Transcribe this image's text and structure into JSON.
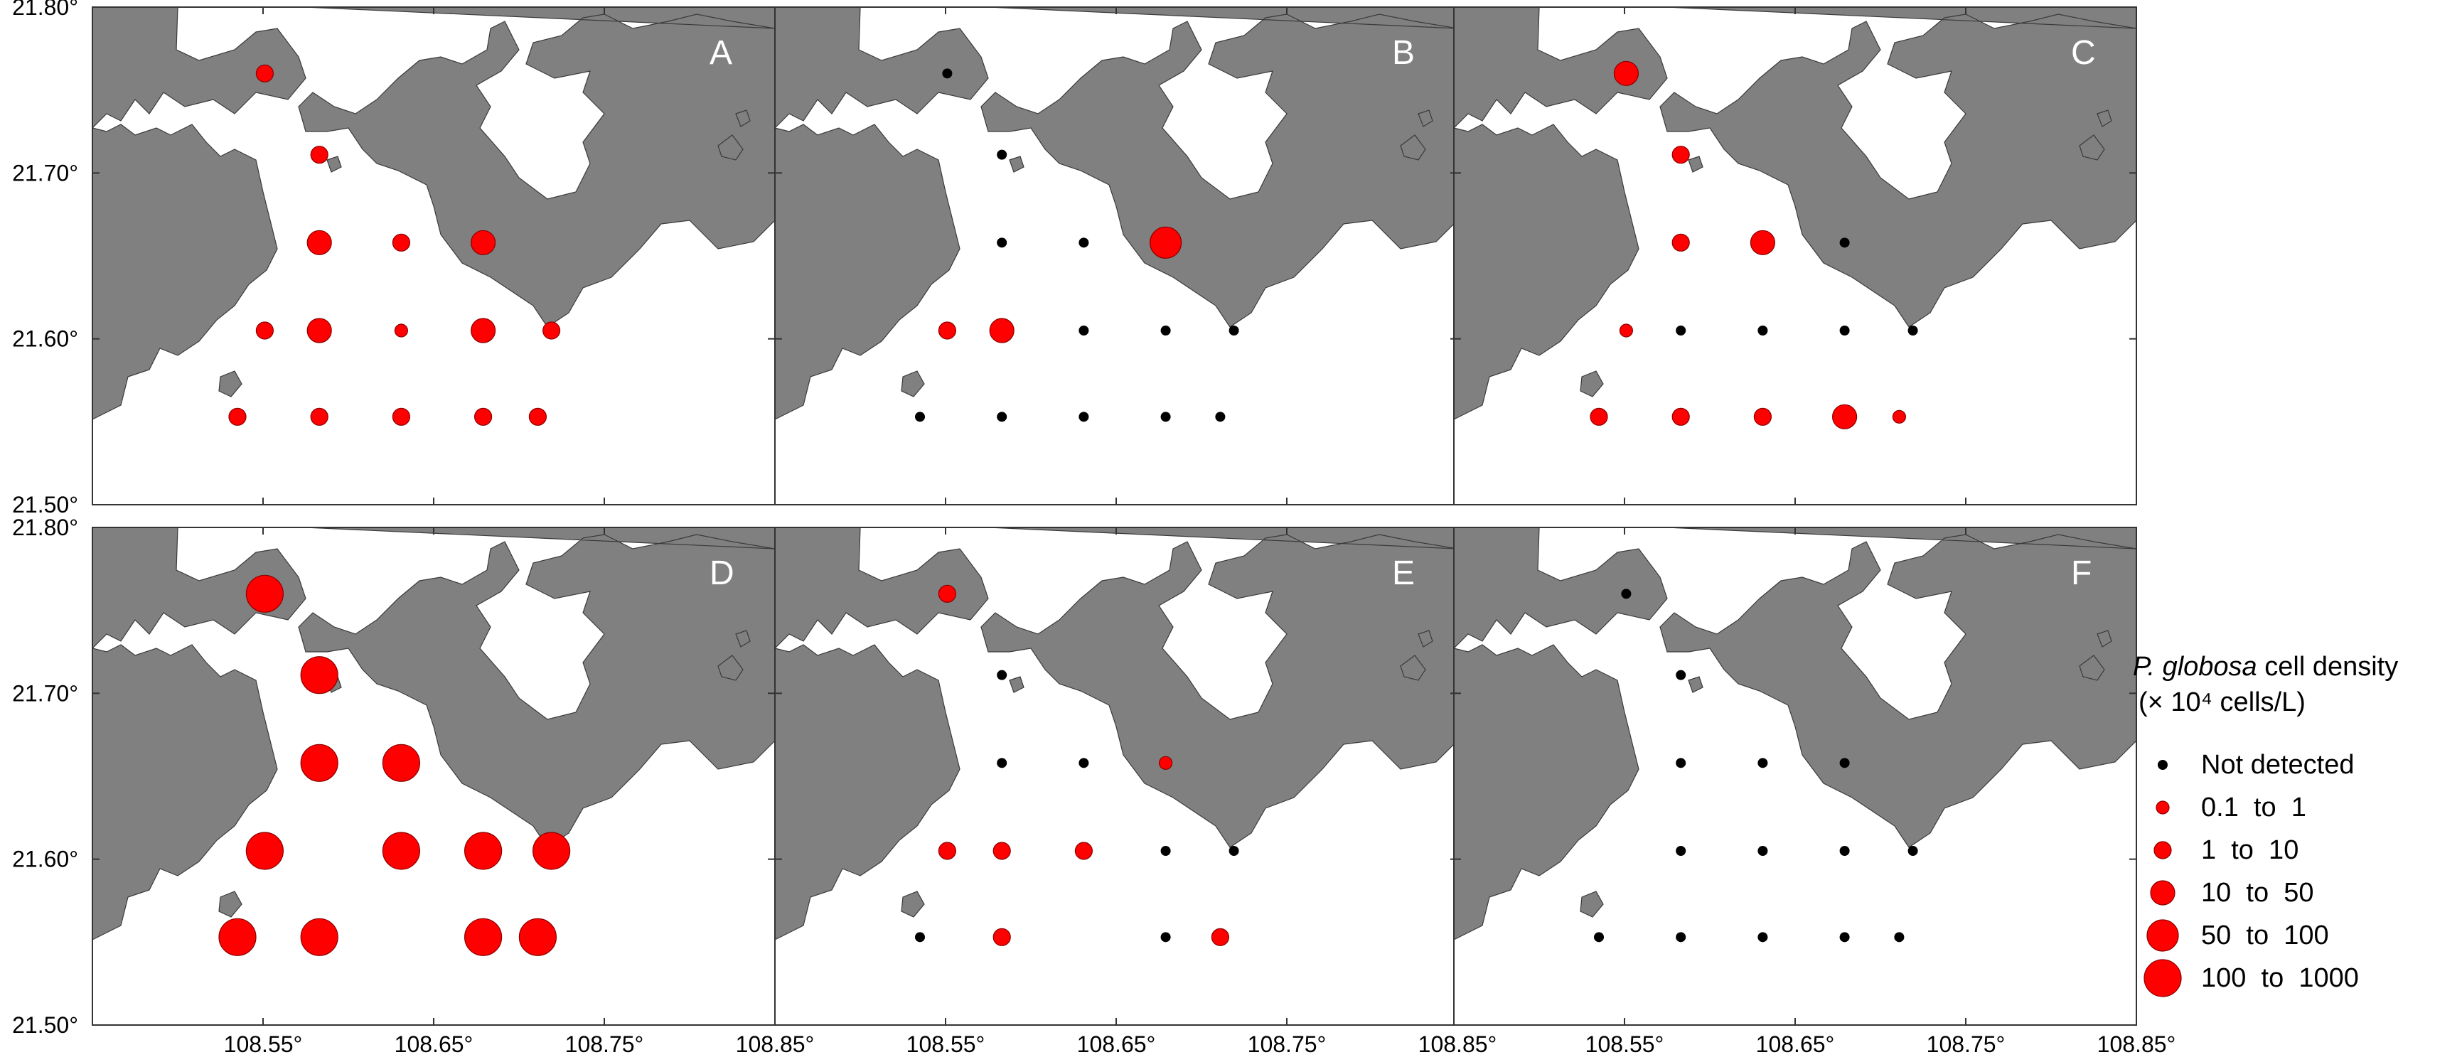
{
  "legend": {
    "title_italic": "P. globosa",
    "title_rest": " cell density",
    "unit": "(× 10⁴ cells/L)",
    "items": [
      {
        "label": "Not detected",
        "class": 0
      },
      {
        "label": "0.1  to  1",
        "class": 1
      },
      {
        "label": "1  to  10",
        "class": 2
      },
      {
        "label": "10  to  50",
        "class": 3
      },
      {
        "label": "50  to  100",
        "class": 4
      },
      {
        "label": "100  to  1000",
        "class": 5
      }
    ]
  },
  "axes": {
    "lat_ticks": [
      "21.80°",
      "21.70°",
      "21.60°",
      "21.50°"
    ],
    "lon_ticks": [
      "108.55°",
      "108.65°",
      "108.75°",
      "108.85°"
    ],
    "lat_range": [
      21.5,
      21.8
    ],
    "lon_range": [
      108.45,
      108.85
    ]
  },
  "colors": {
    "land": "#808080",
    "sea": "#ffffff",
    "detected": "#ff0000",
    "not_detected": "#000000"
  },
  "stations": [
    {
      "id": "s1",
      "lon": 108.551,
      "lat": 21.76
    },
    {
      "id": "s2",
      "lon": 108.583,
      "lat": 21.711
    },
    {
      "id": "s3",
      "lon": 108.583,
      "lat": 21.658
    },
    {
      "id": "s4",
      "lon": 108.631,
      "lat": 21.658
    },
    {
      "id": "s5",
      "lon": 108.679,
      "lat": 21.658
    },
    {
      "id": "s6",
      "lon": 108.551,
      "lat": 21.605
    },
    {
      "id": "s7",
      "lon": 108.583,
      "lat": 21.605
    },
    {
      "id": "s8",
      "lon": 108.631,
      "lat": 21.605
    },
    {
      "id": "s9",
      "lon": 108.679,
      "lat": 21.605
    },
    {
      "id": "s10",
      "lon": 108.719,
      "lat": 21.605
    },
    {
      "id": "s11",
      "lon": 108.535,
      "lat": 21.553
    },
    {
      "id": "s12",
      "lon": 108.583,
      "lat": 21.553
    },
    {
      "id": "s13",
      "lon": 108.631,
      "lat": 21.553
    },
    {
      "id": "s14",
      "lon": 108.679,
      "lat": 21.553
    },
    {
      "id": "s15",
      "lon": 108.711,
      "lat": 21.553
    }
  ],
  "panels": [
    {
      "label": "A",
      "classes": [
        2,
        2,
        3,
        2,
        3,
        2,
        3,
        1,
        3,
        2,
        2,
        2,
        2,
        2,
        2
      ]
    },
    {
      "label": "B",
      "classes": [
        0,
        0,
        0,
        0,
        4,
        2,
        3,
        0,
        0,
        0,
        0,
        0,
        0,
        0,
        0
      ]
    },
    {
      "label": "C",
      "classes": [
        3,
        2,
        2,
        3,
        0,
        1,
        0,
        0,
        0,
        0,
        2,
        2,
        2,
        3,
        1
      ]
    },
    {
      "label": "D",
      "classes": [
        5,
        5,
        5,
        5,
        null,
        5,
        null,
        5,
        5,
        5,
        5,
        5,
        null,
        5,
        5
      ]
    },
    {
      "label": "E",
      "classes": [
        2,
        0,
        0,
        0,
        1,
        2,
        2,
        2,
        0,
        0,
        0,
        2,
        null,
        0,
        2
      ]
    },
    {
      "label": "F",
      "classes": [
        0,
        0,
        0,
        0,
        0,
        null,
        0,
        0,
        0,
        0,
        0,
        0,
        0,
        0,
        0
      ]
    }
  ]
}
